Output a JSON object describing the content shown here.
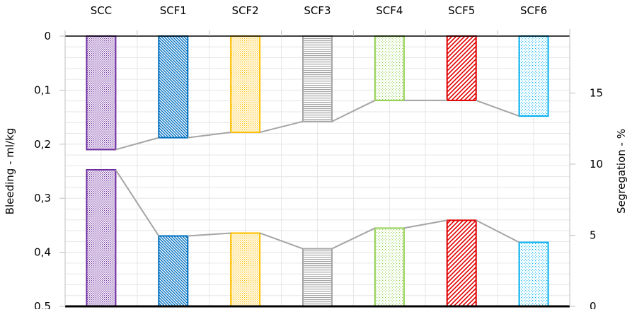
{
  "chart_data": {
    "type": "bar",
    "categories": [
      "SCC",
      "SCF1",
      "SCF2",
      "SCF3",
      "SCF4",
      "SCF5",
      "SCF6"
    ],
    "colors": [
      "#7030a0",
      "#0070c0",
      "#ffc000",
      "#a5a5a5",
      "#92d050",
      "#e00000",
      "#00b0f0"
    ],
    "patterns": [
      "dots-dense",
      "diagonal-down",
      "dots",
      "horizontal-lines",
      "dots-sparse",
      "diagonal-up-wide",
      "dots-fine"
    ],
    "series_line_color": "#a5a5a5",
    "grid": true,
    "left_axis": {
      "label": "Bleeding - ml/kg",
      "range": [
        0,
        0.5
      ],
      "reversed": true,
      "ticks": [
        "0",
        "0,1",
        "0,2",
        "0,3",
        "0,4",
        "0,5"
      ],
      "tick_values": [
        0,
        0.1,
        0.2,
        0.3,
        0.4,
        0.5
      ],
      "values": [
        0.21,
        0.188,
        0.178,
        0.158,
        0.119,
        0.119,
        0.148
      ]
    },
    "right_axis": {
      "label": "Segregation - %",
      "range": [
        0,
        19
      ],
      "ticks": [
        "0",
        "5",
        "10",
        "15"
      ],
      "tick_values": [
        0,
        5,
        10,
        15
      ],
      "values": [
        9.6,
        4.95,
        5.15,
        4.05,
        5.5,
        6.05,
        4.5
      ]
    }
  }
}
